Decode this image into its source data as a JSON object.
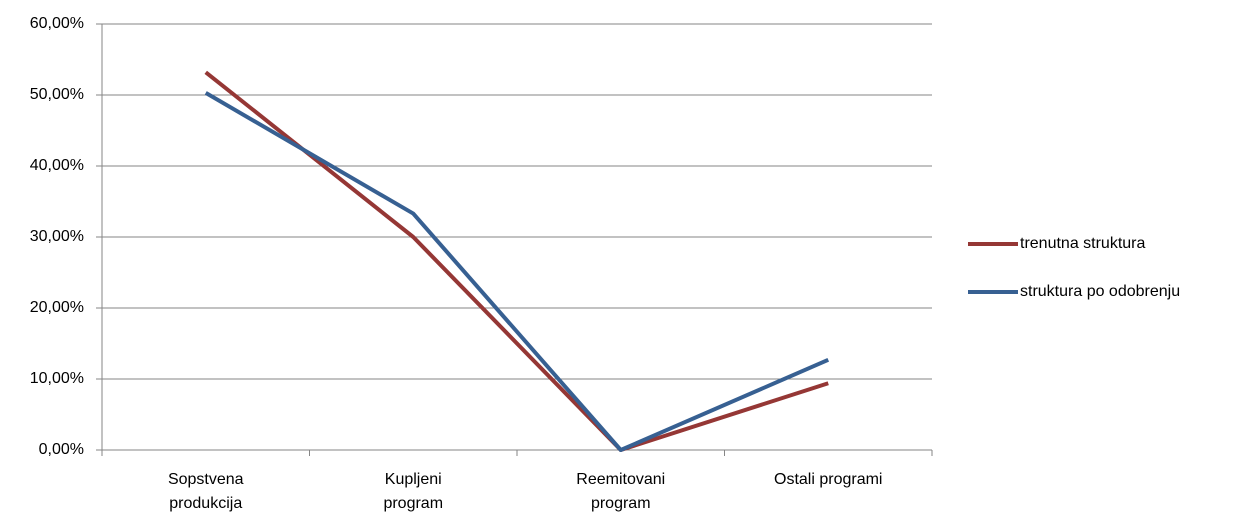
{
  "chart_data": {
    "type": "line",
    "categories": [
      "Sopstvena\nprodukcija",
      "Kupljeni\nprogram",
      "Reemitovani\nprogram",
      "Ostali programi"
    ],
    "series": [
      {
        "name": "trenutna struktura",
        "color": "#953735",
        "values": [
          53.2,
          30.0,
          0,
          9.4
        ]
      },
      {
        "name": "struktura po odobrenju",
        "color": "#376092",
        "values": [
          50.3,
          33.3,
          0,
          12.7
        ]
      }
    ],
    "ylim": [
      0,
      60
    ],
    "yticks": [
      {
        "value": 0,
        "label": "0,00%"
      },
      {
        "value": 10,
        "label": "10,00%"
      },
      {
        "value": 20,
        "label": "20,00%"
      },
      {
        "value": 30,
        "label": "30,00%"
      },
      {
        "value": 40,
        "label": "40,00%"
      },
      {
        "value": 50,
        "label": "50,00%"
      },
      {
        "value": 60,
        "label": "60,00%"
      }
    ],
    "grid": true,
    "legend": "right"
  }
}
